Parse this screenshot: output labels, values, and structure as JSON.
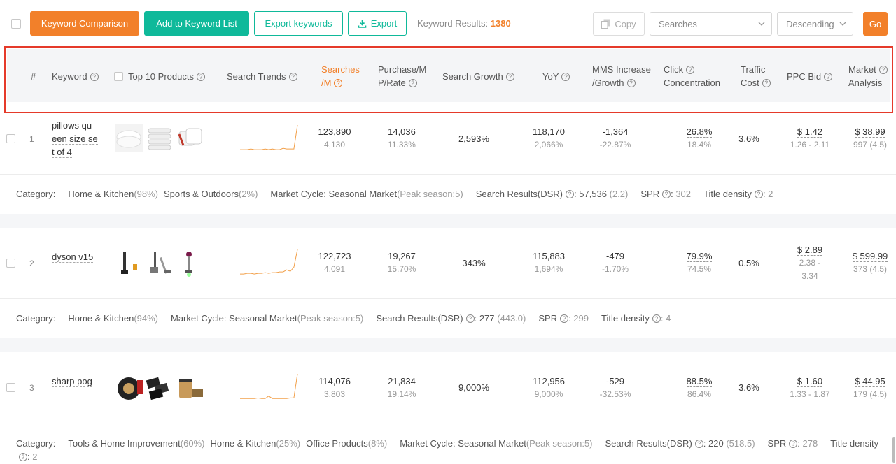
{
  "toolbar": {
    "keyword_comparison": "Keyword Comparison",
    "add_to_list": "Add to Keyword List",
    "export_keywords": "Export keywords",
    "export": "Export",
    "results_label": "Keyword Results:",
    "results_count": "1380",
    "copy": "Copy",
    "sort_field": "Searches",
    "sort_order": "Descending",
    "go": "Go"
  },
  "header": {
    "num": "#",
    "keyword": "Keyword",
    "top10": "Top 10 Products",
    "trends": "Search Trends",
    "searches_1": "Searches",
    "searches_2": "/M",
    "purchase_1": "Purchase/M",
    "purchase_2": "P/Rate",
    "growth": "Search Growth",
    "yoy": "YoY",
    "mms_1": "MMS Increase",
    "mms_2": "/Growth",
    "click_1": "Click",
    "click_2": "Concentration",
    "traffic_1": "Traffic",
    "traffic_2": "Cost",
    "ppc": "PPC Bid",
    "market_1": "Market",
    "market_2": "Analysis"
  },
  "rows": [
    {
      "num": "1",
      "kw_l1": "pillows qu",
      "kw_l2": "een size se",
      "kw_l3": "t of 4",
      "searches": "123,890",
      "searches_sub": "4,130",
      "purchase": "14,036",
      "purchase_sub": "11.33%",
      "growth": "2,593%",
      "yoy": "118,170",
      "yoy_sub": "2,066%",
      "mms": "-1,364",
      "mms_sub": "-22.87%",
      "click": "26.8%",
      "click_sub": "18.4%",
      "traffic": "3.6%",
      "ppc": "$ 1.42",
      "ppc_range": "1.26 - 2.11",
      "market": "$ 38.99",
      "market_sub": "997 (4.5)",
      "spark": [
        2,
        2,
        2,
        3,
        2,
        2,
        2,
        3,
        2,
        3,
        2,
        2,
        4,
        3,
        3,
        3,
        38
      ],
      "category_label": "Category:",
      "cat1": "Home & Kitchen",
      "cat1_pct": "(98%)",
      "cat2": "Sports & Outdoors",
      "cat2_pct": "(2%)",
      "cycle_label": "Market Cycle:",
      "cycle": "Seasonal Market",
      "cycle_note": "(Peak season:5)",
      "dsr_label": "Search Results(DSR)",
      "dsr": "57,536",
      "dsr_note": "(2.2)",
      "spr_label": "SPR",
      "spr": "302",
      "title_label": "Title density",
      "title": "2"
    },
    {
      "num": "2",
      "kw_l1": "dyson v15",
      "searches": "122,723",
      "searches_sub": "4,091",
      "purchase": "19,267",
      "purchase_sub": "15.70%",
      "growth": "343%",
      "yoy": "115,883",
      "yoy_sub": "1,694%",
      "mms": "-479",
      "mms_sub": "-1.70%",
      "click": "79.9%",
      "click_sub": "74.5%",
      "traffic": "0.5%",
      "ppc": "$ 2.89",
      "ppc_range_1": "2.38 -",
      "ppc_range_2": "3.34",
      "market": "$ 599.99",
      "market_sub": "373 (4.5)",
      "spark": [
        2,
        2,
        3,
        3,
        2,
        3,
        3,
        4,
        3,
        4,
        4,
        5,
        5,
        8,
        6,
        12,
        38
      ],
      "category_label": "Category:",
      "cat1": "Home & Kitchen",
      "cat1_pct": "(94%)",
      "cycle_label": "Market Cycle:",
      "cycle": "Seasonal Market",
      "cycle_note": "(Peak season:5)",
      "dsr_label": "Search Results(DSR)",
      "dsr": "277",
      "dsr_note": "(443.0)",
      "spr_label": "SPR",
      "spr": "299",
      "title_label": "Title density",
      "title": "4"
    },
    {
      "num": "3",
      "kw_l1": "sharp pog",
      "searches": "114,076",
      "searches_sub": "3,803",
      "purchase": "21,834",
      "purchase_sub": "19.14%",
      "growth": "9,000%",
      "yoy": "112,956",
      "yoy_sub": "9,000%",
      "mms": "-529",
      "mms_sub": "-32.53%",
      "click": "88.5%",
      "click_sub": "86.4%",
      "traffic": "3.6%",
      "ppc": "$ 1.60",
      "ppc_range": "1.33 - 1.87",
      "market": "$ 44.95",
      "market_sub": "179 (4.5)",
      "spark": [
        2,
        2,
        2,
        2,
        2,
        3,
        2,
        2,
        6,
        2,
        2,
        2,
        2,
        2,
        3,
        3,
        42
      ],
      "category_label": "Category:",
      "cat1": "Tools & Home Improvement",
      "cat1_pct": "(60%)",
      "cat2": "Home & Kitchen",
      "cat2_pct": "(25%)",
      "cat3": "Office Products",
      "cat3_pct": "(8%)",
      "cycle_label": "Market Cycle:",
      "cycle": "Seasonal Market",
      "cycle_note": "(Peak season:5)",
      "dsr_label": "Search Results(DSR)",
      "dsr": "220",
      "dsr_note": "(518.5)",
      "spr_label": "SPR",
      "spr": "278",
      "title_label": "Title density",
      "title": "2"
    }
  ],
  "colors": {
    "accent": "#f2802a",
    "teal": "#0fb99a",
    "highlight": "#e53a2a"
  },
  "help_glyph": "?",
  "q_icon": "question-circle-icon"
}
